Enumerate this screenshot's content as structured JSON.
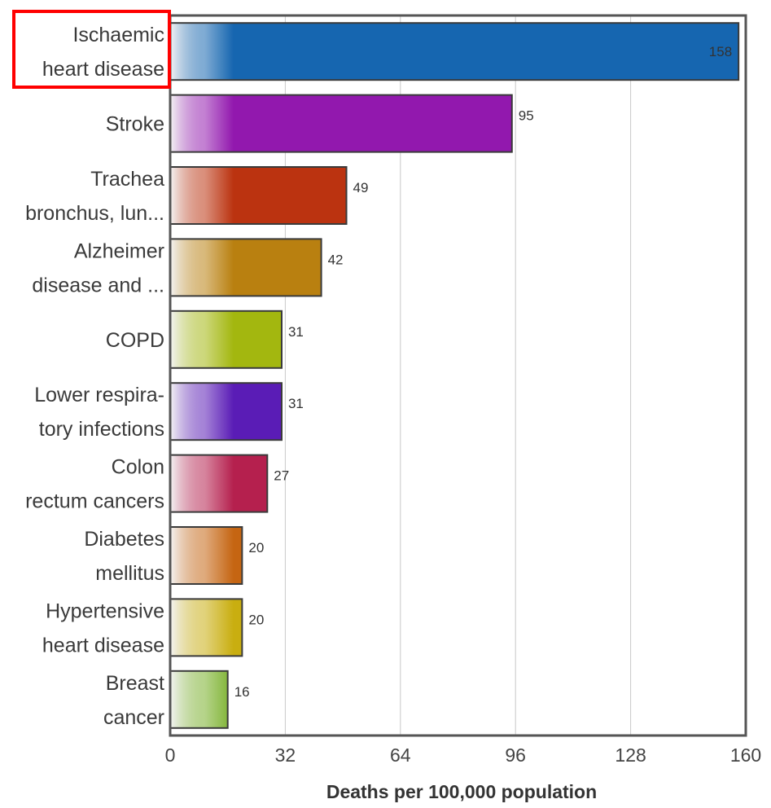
{
  "chart_data": {
    "type": "bar",
    "orientation": "horizontal",
    "categories": [
      [
        "Ischaemic",
        "heart disease"
      ],
      [
        "Stroke"
      ],
      [
        "Trachea",
        "bronchus, lun..."
      ],
      [
        "Alzheimer",
        "disease and ..."
      ],
      [
        "COPD"
      ],
      [
        "Lower respira-",
        "tory infections"
      ],
      [
        "Colon",
        "rectum cancers"
      ],
      [
        "Diabetes",
        "mellitus"
      ],
      [
        "Hypertensive",
        "heart disease"
      ],
      [
        "Breast",
        "cancer"
      ]
    ],
    "values": [
      158,
      95,
      49,
      42,
      31,
      31,
      27,
      20,
      20,
      16
    ],
    "value_labels": [
      "158",
      "95",
      "49",
      "42",
      "31",
      "31",
      "27",
      "20",
      "20",
      "16"
    ],
    "colors": [
      "#1666b0",
      "#9218ae",
      "#bb3310",
      "#b98010",
      "#a3b70f",
      "#5a1cb6",
      "#b5204e",
      "#c56512",
      "#c9ae10",
      "#79b02a"
    ],
    "xlabel": "Deaths per 100,000 population",
    "xlim": [
      0,
      160
    ],
    "xticks": [
      0,
      32,
      64,
      96,
      128,
      160
    ],
    "grid": true,
    "highlight": {
      "category_index": 0,
      "color": "#ff0000"
    }
  }
}
